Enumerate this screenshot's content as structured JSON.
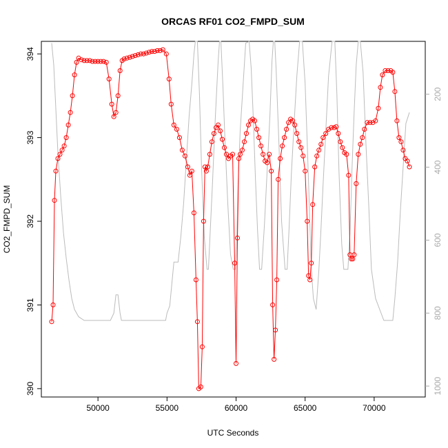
{
  "chart_data": {
    "type": "line",
    "title": "ORCAS RF01 CO2_FMPD_SUM",
    "xlabel": "UTC Seconds",
    "ylabel": "CO2_FMPD_SUM",
    "xlim": [
      45900,
      73700
    ],
    "ylim": [
      389.9,
      394.15
    ],
    "x_ticks": [
      50000,
      55000,
      60000,
      65000,
      70000
    ],
    "y_ticks": [
      390,
      391,
      392,
      393,
      394
    ],
    "y2_ticks": [
      200,
      400,
      600,
      800,
      1000
    ],
    "y2_reversed": true,
    "y2_lim": [
      55,
      1030
    ],
    "grid": false,
    "legend": "none",
    "colors": {
      "series": "#ff0000",
      "secondary": "#bbbbbb",
      "axis_right": "#aaaaaa"
    },
    "series": [
      {
        "marker": "open-circle",
        "x": [
          46650,
          46750,
          46850,
          46950,
          47100,
          47250,
          47400,
          47550,
          47700,
          47850,
          48000,
          48150,
          48300,
          48450,
          48600,
          48800,
          49000,
          49200,
          49400,
          49600,
          49800,
          50000,
          50200,
          50400,
          50600,
          50800,
          51000,
          51150,
          51300,
          51450,
          51600,
          51750,
          51900,
          52100,
          52300,
          52500,
          52700,
          52900,
          53100,
          53300,
          53500,
          53700,
          53900,
          54100,
          54300,
          54500,
          54700,
          54950,
          55150,
          55300,
          55500,
          55700,
          55900,
          56100,
          56300,
          56500,
          56650,
          56800,
          56950,
          57100,
          57200,
          57300,
          57450,
          57550,
          57650,
          57750,
          57850,
          57950,
          58100,
          58250,
          58400,
          58550,
          58700,
          58850,
          59000,
          59150,
          59300,
          59450,
          59600,
          59750,
          59900,
          60000,
          60100,
          60200,
          60300,
          60450,
          60600,
          60750,
          60900,
          61050,
          61200,
          61350,
          61500,
          61650,
          61800,
          61950,
          62100,
          62250,
          62400,
          62550,
          62650,
          62750,
          62850,
          62950,
          63050,
          63200,
          63350,
          63500,
          63650,
          63800,
          63950,
          64100,
          64250,
          64400,
          64550,
          64700,
          64850,
          65000,
          65150,
          65250,
          65350,
          65450,
          65550,
          65700,
          65850,
          66000,
          66150,
          66300,
          66500,
          66700,
          66900,
          67100,
          67250,
          67400,
          67550,
          67700,
          67850,
          68000,
          68150,
          68250,
          68350,
          68450,
          68550,
          68700,
          68850,
          69000,
          69150,
          69300,
          69500,
          69700,
          69900,
          70100,
          70300,
          70450,
          70600,
          70800,
          71000,
          71200,
          71350,
          71500,
          71650,
          71800,
          71950,
          72100,
          72250,
          72400,
          72550
        ],
        "y": [
          390.8,
          391.0,
          392.25,
          392.6,
          392.75,
          392.8,
          392.85,
          392.9,
          393.0,
          393.15,
          393.3,
          393.5,
          393.75,
          393.9,
          393.95,
          393.93,
          393.92,
          393.92,
          393.92,
          393.91,
          393.91,
          393.91,
          393.91,
          393.91,
          393.9,
          393.7,
          393.4,
          393.25,
          393.3,
          393.5,
          393.8,
          393.92,
          393.94,
          393.95,
          393.96,
          393.97,
          393.98,
          393.99,
          394.0,
          394.0,
          394.01,
          394.02,
          394.03,
          394.03,
          394.04,
          394.04,
          394.05,
          394.0,
          393.7,
          393.4,
          393.15,
          393.1,
          393.0,
          392.85,
          392.78,
          392.65,
          392.55,
          392.6,
          392.1,
          391.3,
          390.8,
          390.0,
          390.02,
          390.5,
          392.0,
          392.65,
          392.6,
          392.65,
          392.8,
          392.95,
          393.05,
          393.12,
          393.15,
          393.08,
          392.98,
          392.88,
          392.8,
          392.75,
          392.78,
          392.8,
          391.5,
          390.3,
          391.8,
          392.75,
          392.8,
          392.85,
          392.95,
          393.05,
          393.15,
          393.2,
          393.22,
          393.2,
          393.1,
          393.0,
          392.9,
          392.8,
          392.72,
          392.7,
          392.8,
          392.6,
          391.0,
          390.35,
          390.7,
          391.3,
          392.5,
          392.75,
          392.9,
          393.0,
          393.1,
          393.18,
          393.22,
          393.2,
          393.15,
          393.05,
          392.95,
          392.88,
          392.78,
          392.6,
          392.0,
          391.35,
          391.3,
          391.5,
          392.2,
          392.65,
          392.78,
          392.85,
          392.92,
          393.0,
          393.05,
          393.1,
          393.12,
          393.12,
          393.13,
          393.05,
          392.95,
          392.88,
          392.82,
          392.8,
          392.55,
          391.6,
          391.55,
          391.55,
          391.6,
          392.45,
          392.8,
          392.92,
          393.0,
          393.1,
          393.18,
          393.18,
          393.18,
          393.2,
          393.35,
          393.6,
          393.75,
          393.8,
          393.8,
          393.8,
          393.78,
          393.55,
          393.2,
          393.0,
          392.95,
          392.85,
          392.75,
          392.72,
          392.65
        ]
      }
    ],
    "secondary_series": {
      "color": "#bbbbbb",
      "x": [
        46650,
        46800,
        46950,
        47100,
        47300,
        47500,
        47700,
        47900,
        48100,
        48300,
        48600,
        49000,
        49500,
        50000,
        50500,
        50900,
        51150,
        51300,
        51450,
        51600,
        51700,
        51800,
        52000,
        52500,
        53000,
        53500,
        54000,
        54500,
        54900,
        55000,
        55050,
        55100,
        55200,
        55350,
        55500,
        55800,
        56000,
        56200,
        56400,
        56600,
        56800,
        56950,
        57050,
        57100,
        57200,
        57350,
        57500,
        57700,
        57900,
        58000,
        58100,
        58300,
        58500,
        58700,
        58800,
        58900,
        59050,
        59200,
        59400,
        59600,
        59800,
        59950,
        60050,
        60150,
        60300,
        60500,
        60700,
        60950,
        61100,
        61250,
        61400,
        61550,
        61700,
        61850,
        62050,
        62250,
        62450,
        62600,
        62700,
        62800,
        62900,
        63100,
        63300,
        63550,
        63700,
        63850,
        64000,
        64200,
        64400,
        64600,
        64800,
        65000,
        65150,
        65300,
        65450,
        65600,
        65800,
        66000,
        66150,
        66300,
        66500,
        66700,
        66950,
        67150,
        67300,
        67450,
        67650,
        67800,
        67950,
        68100,
        68250,
        68400,
        68550,
        68700,
        68850,
        69000,
        69200,
        69400,
        69600,
        69800,
        70100,
        70400,
        70700,
        71000,
        71200,
        71350,
        71500,
        71700,
        71900,
        72100,
        72300,
        72550
      ],
      "y": [
        60,
        120,
        240,
        360,
        480,
        580,
        650,
        710,
        760,
        790,
        810,
        820,
        820,
        820,
        820,
        820,
        800,
        750,
        750,
        800,
        820,
        820,
        820,
        820,
        820,
        820,
        820,
        820,
        820,
        800,
        795,
        790,
        780,
        720,
        660,
        660,
        590,
        500,
        380,
        260,
        170,
        90,
        55,
        55,
        55,
        200,
        400,
        590,
        680,
        680,
        600,
        440,
        260,
        110,
        55,
        55,
        180,
        330,
        500,
        640,
        680,
        680,
        600,
        440,
        300,
        180,
        60,
        55,
        130,
        270,
        430,
        570,
        680,
        680,
        560,
        410,
        260,
        110,
        55,
        55,
        130,
        330,
        550,
        680,
        680,
        560,
        420,
        280,
        150,
        55,
        55,
        170,
        330,
        500,
        680,
        760,
        790,
        680,
        570,
        450,
        300,
        150,
        55,
        55,
        200,
        410,
        610,
        680,
        680,
        680,
        580,
        400,
        250,
        120,
        55,
        55,
        140,
        330,
        500,
        680,
        760,
        790,
        820,
        820,
        820,
        820,
        760,
        660,
        520,
        400,
        280,
        250
      ]
    }
  }
}
